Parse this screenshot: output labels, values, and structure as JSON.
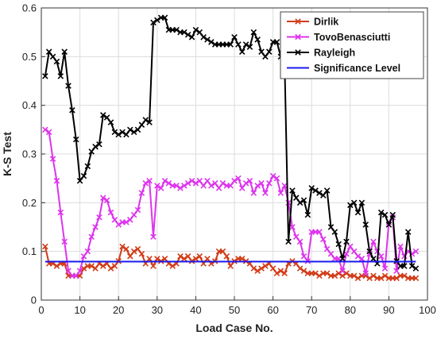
{
  "chart_data": {
    "type": "line",
    "title": "",
    "xlabel": "Load Case No.",
    "ylabel": "K-S Test",
    "xlim": [
      0,
      100
    ],
    "ylim": [
      0,
      0.6
    ],
    "xticks": [
      0,
      10,
      20,
      30,
      40,
      50,
      60,
      70,
      80,
      90,
      100
    ],
    "yticks": [
      0,
      0.1,
      0.2,
      0.3,
      0.4,
      0.5,
      0.6
    ],
    "grid": true,
    "legend": "top-right",
    "series": [
      {
        "name": "Dirlik",
        "color": "#d13b16",
        "marker": "x",
        "x": [
          1,
          2,
          3,
          4,
          5,
          6,
          7,
          8,
          9,
          10,
          11,
          12,
          13,
          14,
          15,
          16,
          17,
          18,
          19,
          20,
          21,
          22,
          23,
          24,
          25,
          26,
          27,
          28,
          29,
          30,
          31,
          32,
          33,
          34,
          35,
          36,
          37,
          38,
          39,
          40,
          41,
          42,
          43,
          44,
          45,
          46,
          47,
          48,
          49,
          50,
          51,
          52,
          53,
          54,
          55,
          56,
          57,
          58,
          59,
          60,
          61,
          62,
          63,
          64,
          65,
          66,
          67,
          68,
          69,
          70,
          71,
          72,
          73,
          74,
          75,
          76,
          77,
          78,
          79,
          80,
          81,
          82,
          83,
          84,
          85,
          86,
          87,
          88,
          89,
          90,
          91,
          92,
          93,
          94,
          95,
          96,
          97
        ],
        "y": [
          0.11,
          0.075,
          0.075,
          0.07,
          0.075,
          0.075,
          0.05,
          0.05,
          0.05,
          0.05,
          0.065,
          0.07,
          0.07,
          0.065,
          0.075,
          0.07,
          0.075,
          0.065,
          0.07,
          0.08,
          0.11,
          0.105,
          0.09,
          0.1,
          0.105,
          0.095,
          0.075,
          0.085,
          0.07,
          0.085,
          0.08,
          0.085,
          0.075,
          0.07,
          0.075,
          0.09,
          0.085,
          0.09,
          0.08,
          0.085,
          0.09,
          0.075,
          0.085,
          0.075,
          0.08,
          0.1,
          0.1,
          0.09,
          0.07,
          0.08,
          0.085,
          0.085,
          0.08,
          0.075,
          0.065,
          0.06,
          0.065,
          0.07,
          0.075,
          0.065,
          0.055,
          0.06,
          0.055,
          0.075,
          0.08,
          0.075,
          0.065,
          0.06,
          0.055,
          0.055,
          0.055,
          0.05,
          0.055,
          0.055,
          0.05,
          0.05,
          0.055,
          0.05,
          0.055,
          0.05,
          0.05,
          0.045,
          0.05,
          0.05,
          0.045,
          0.05,
          0.045,
          0.045,
          0.05,
          0.045,
          0.045,
          0.045,
          0.05,
          0.05,
          0.045,
          0.045,
          0.045
        ]
      },
      {
        "name": "TovoBenasciutti",
        "color": "#dd33ee",
        "marker": "x",
        "x": [
          1,
          2,
          3,
          4,
          5,
          6,
          7,
          8,
          9,
          10,
          11,
          12,
          13,
          14,
          15,
          16,
          17,
          18,
          19,
          20,
          21,
          22,
          23,
          24,
          25,
          26,
          27,
          28,
          29,
          30,
          31,
          32,
          33,
          34,
          35,
          36,
          37,
          38,
          39,
          40,
          41,
          42,
          43,
          44,
          45,
          46,
          47,
          48,
          49,
          50,
          51,
          52,
          53,
          54,
          55,
          56,
          57,
          58,
          59,
          60,
          61,
          62,
          63,
          64,
          65,
          66,
          67,
          68,
          69,
          70,
          71,
          72,
          73,
          74,
          75,
          76,
          77,
          78,
          79,
          80,
          81,
          82,
          83,
          84,
          85,
          86,
          87,
          88,
          89,
          90,
          91,
          92,
          93,
          94,
          95,
          96,
          97
        ],
        "y": [
          0.35,
          0.345,
          0.29,
          0.245,
          0.18,
          0.12,
          0.06,
          0.05,
          0.05,
          0.06,
          0.09,
          0.1,
          0.13,
          0.15,
          0.17,
          0.21,
          0.205,
          0.18,
          0.165,
          0.155,
          0.16,
          0.16,
          0.165,
          0.175,
          0.185,
          0.22,
          0.24,
          0.245,
          0.13,
          0.235,
          0.23,
          0.245,
          0.24,
          0.235,
          0.235,
          0.23,
          0.235,
          0.24,
          0.245,
          0.24,
          0.245,
          0.235,
          0.245,
          0.235,
          0.24,
          0.23,
          0.24,
          0.235,
          0.235,
          0.245,
          0.25,
          0.23,
          0.24,
          0.245,
          0.22,
          0.235,
          0.24,
          0.22,
          0.24,
          0.255,
          0.25,
          0.22,
          0.235,
          0.2,
          0.15,
          0.13,
          0.12,
          0.09,
          0.08,
          0.14,
          0.14,
          0.14,
          0.125,
          0.105,
          0.095,
          0.085,
          0.085,
          0.06,
          0.095,
          0.11,
          0.1,
          0.09,
          0.085,
          0.055,
          0.095,
          0.12,
          0.1,
          0.09,
          0.065,
          0.16,
          0.17,
          0.06,
          0.11,
          0.09,
          0.1,
          0.095,
          0.1
        ]
      },
      {
        "name": "Rayleigh",
        "color": "#000000",
        "marker": "x",
        "x": [
          1,
          2,
          3,
          4,
          5,
          6,
          7,
          8,
          9,
          10,
          11,
          12,
          13,
          14,
          15,
          16,
          17,
          18,
          19,
          20,
          21,
          22,
          23,
          24,
          25,
          26,
          27,
          28,
          29,
          30,
          31,
          32,
          33,
          34,
          35,
          36,
          37,
          38,
          39,
          40,
          41,
          42,
          43,
          44,
          45,
          46,
          47,
          48,
          49,
          50,
          51,
          52,
          53,
          54,
          55,
          56,
          57,
          58,
          59,
          60,
          61,
          62,
          63,
          64,
          65,
          66,
          67,
          68,
          69,
          70,
          71,
          72,
          73,
          74,
          75,
          76,
          77,
          78,
          79,
          80,
          81,
          82,
          83,
          84,
          85,
          86,
          87,
          88,
          89,
          90,
          91,
          92,
          93,
          94,
          95,
          96,
          97
        ],
        "y": [
          0.46,
          0.51,
          0.5,
          0.49,
          0.46,
          0.51,
          0.44,
          0.39,
          0.33,
          0.245,
          0.255,
          0.275,
          0.305,
          0.315,
          0.32,
          0.38,
          0.375,
          0.365,
          0.345,
          0.34,
          0.345,
          0.34,
          0.35,
          0.345,
          0.35,
          0.36,
          0.37,
          0.365,
          0.57,
          0.575,
          0.58,
          0.58,
          0.555,
          0.555,
          0.555,
          0.55,
          0.55,
          0.545,
          0.54,
          0.555,
          0.55,
          0.54,
          0.535,
          0.53,
          0.525,
          0.525,
          0.525,
          0.525,
          0.525,
          0.54,
          0.525,
          0.51,
          0.525,
          0.52,
          0.55,
          0.535,
          0.51,
          0.5,
          0.51,
          0.53,
          0.53,
          0.5,
          0.49,
          0.12,
          0.225,
          0.21,
          0.2,
          0.205,
          0.175,
          0.23,
          0.225,
          0.22,
          0.215,
          0.225,
          0.15,
          0.14,
          0.115,
          0.085,
          0.12,
          0.195,
          0.2,
          0.18,
          0.2,
          0.155,
          0.1,
          0.085,
          0.075,
          0.18,
          0.175,
          0.155,
          0.175,
          0.08,
          0.07,
          0.07,
          0.14,
          0.07,
          0.065
        ]
      },
      {
        "name": "Significance Level",
        "color": "#1a1aee",
        "marker": "none",
        "x": [
          1,
          97
        ],
        "y": [
          0.079,
          0.079
        ]
      }
    ]
  }
}
